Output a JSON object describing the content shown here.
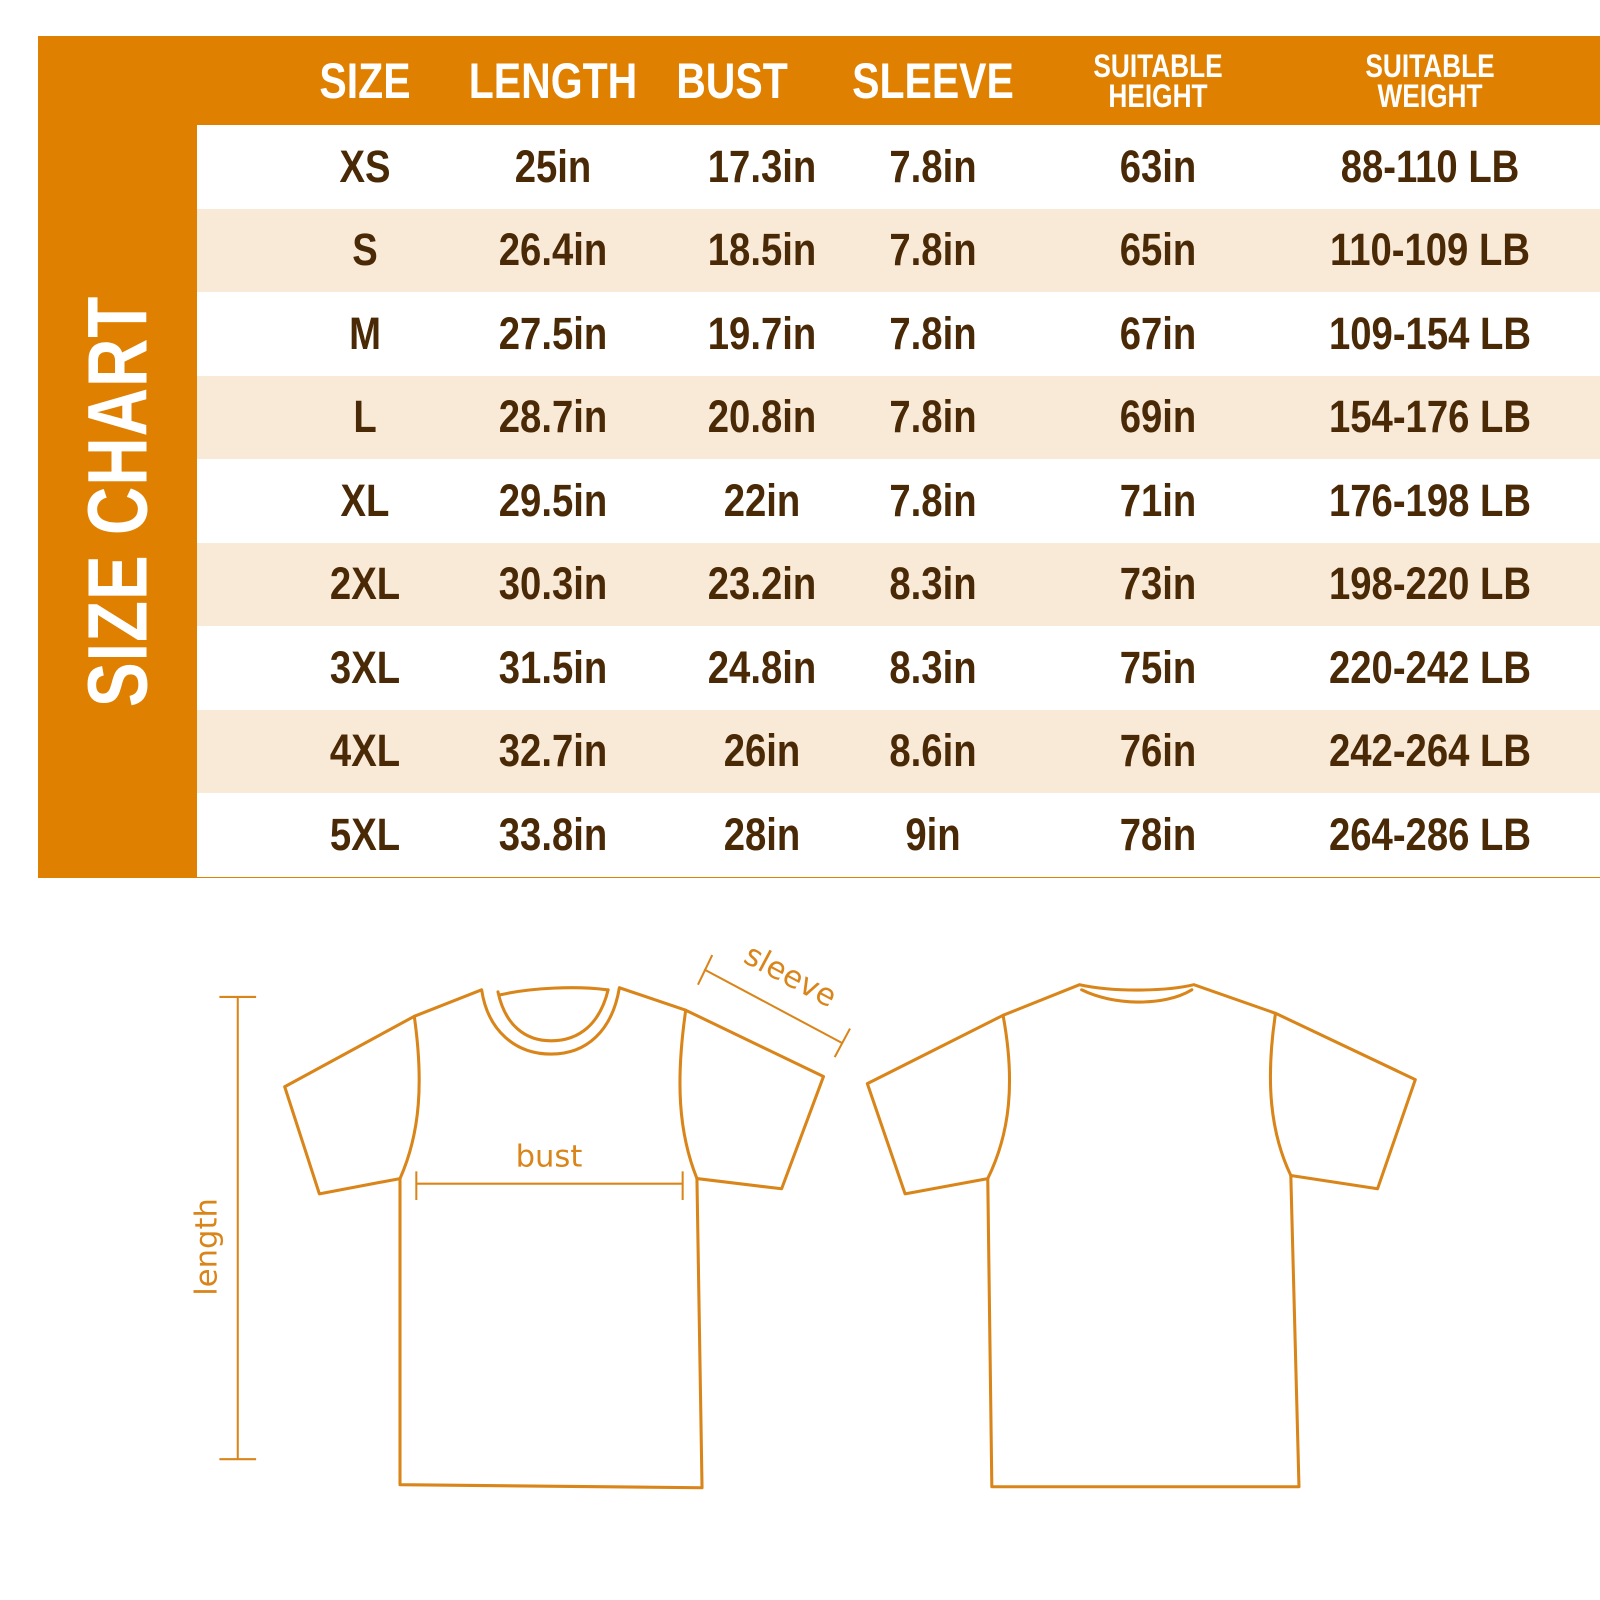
{
  "title": "SIZE CHART",
  "columns": [
    "SIZE",
    "LENGTH",
    "BUST",
    "SLEEVE",
    "SUITABLE HEIGHT",
    "SUITABLE WEIGHT"
  ],
  "column_lines": {
    "height": [
      "SUITABLE",
      "HEIGHT"
    ],
    "weight": [
      "SUITABLE",
      "WEIGHT"
    ]
  },
  "rows": [
    [
      "XS",
      "25in",
      "17.3in",
      "7.8in",
      "63in",
      "88-110 LB"
    ],
    [
      "S",
      "26.4in",
      "18.5in",
      "7.8in",
      "65in",
      "110-109 LB"
    ],
    [
      "M",
      "27.5in",
      "19.7in",
      "7.8in",
      "67in",
      "109-154 LB"
    ],
    [
      "L",
      "28.7in",
      "20.8in",
      "7.8in",
      "69in",
      "154-176 LB"
    ],
    [
      "XL",
      "29.5in",
      "22in",
      "7.8in",
      "71in",
      "176-198 LB"
    ],
    [
      "2XL",
      "30.3in",
      "23.2in",
      "8.3in",
      "73in",
      "198-220 LB"
    ],
    [
      "3XL",
      "31.5in",
      "24.8in",
      "8.3in",
      "75in",
      "220-242 LB"
    ],
    [
      "4XL",
      "32.7in",
      "26in",
      "8.6in",
      "76in",
      "242-264 LB"
    ],
    [
      "5XL",
      "33.8in",
      "28in",
      "9in",
      "78in",
      "264-286 LB"
    ]
  ],
  "diagram": {
    "length": "length",
    "bust": "bust",
    "sleeve": "sleeve"
  },
  "colors": {
    "accent": "#e08000",
    "row_alt": "#f9e9d7",
    "text": "#4a2a06",
    "line": "#d9851a"
  }
}
